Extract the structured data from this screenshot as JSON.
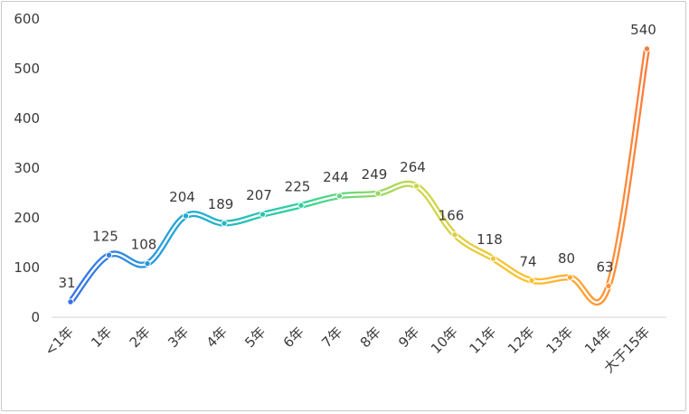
{
  "chart_data": {
    "type": "line",
    "categories": [
      "<1年",
      "1年",
      "2年",
      "3年",
      "4年",
      "5年",
      "6年",
      "7年",
      "8年",
      "9年",
      "10年",
      "11年",
      "12年",
      "13年",
      "14年",
      "大于15年"
    ],
    "series": [
      {
        "values": [
          31,
          125,
          108,
          204,
          189,
          207,
          225,
          244,
          249,
          264,
          166,
          118,
          74,
          80,
          63,
          540
        ]
      }
    ],
    "title": "",
    "xlabel": "",
    "ylabel": "",
    "ylim": [
      0,
      600
    ],
    "yticks": [
      "0",
      "100",
      "200",
      "300",
      "400",
      "500",
      "600"
    ],
    "data_labels": [
      "31",
      "125",
      "108",
      "204",
      "189",
      "207",
      "225",
      "244",
      "249",
      "264",
      "166",
      "118",
      "74",
      "80",
      "63",
      "540"
    ],
    "grid": false,
    "legend": "none",
    "smooth": true,
    "gradient_colors": [
      "#3a6fe8",
      "#20a9d6",
      "#2fd49a",
      "#c9d94a",
      "#ffbf2e",
      "#ff7b3a"
    ]
  }
}
